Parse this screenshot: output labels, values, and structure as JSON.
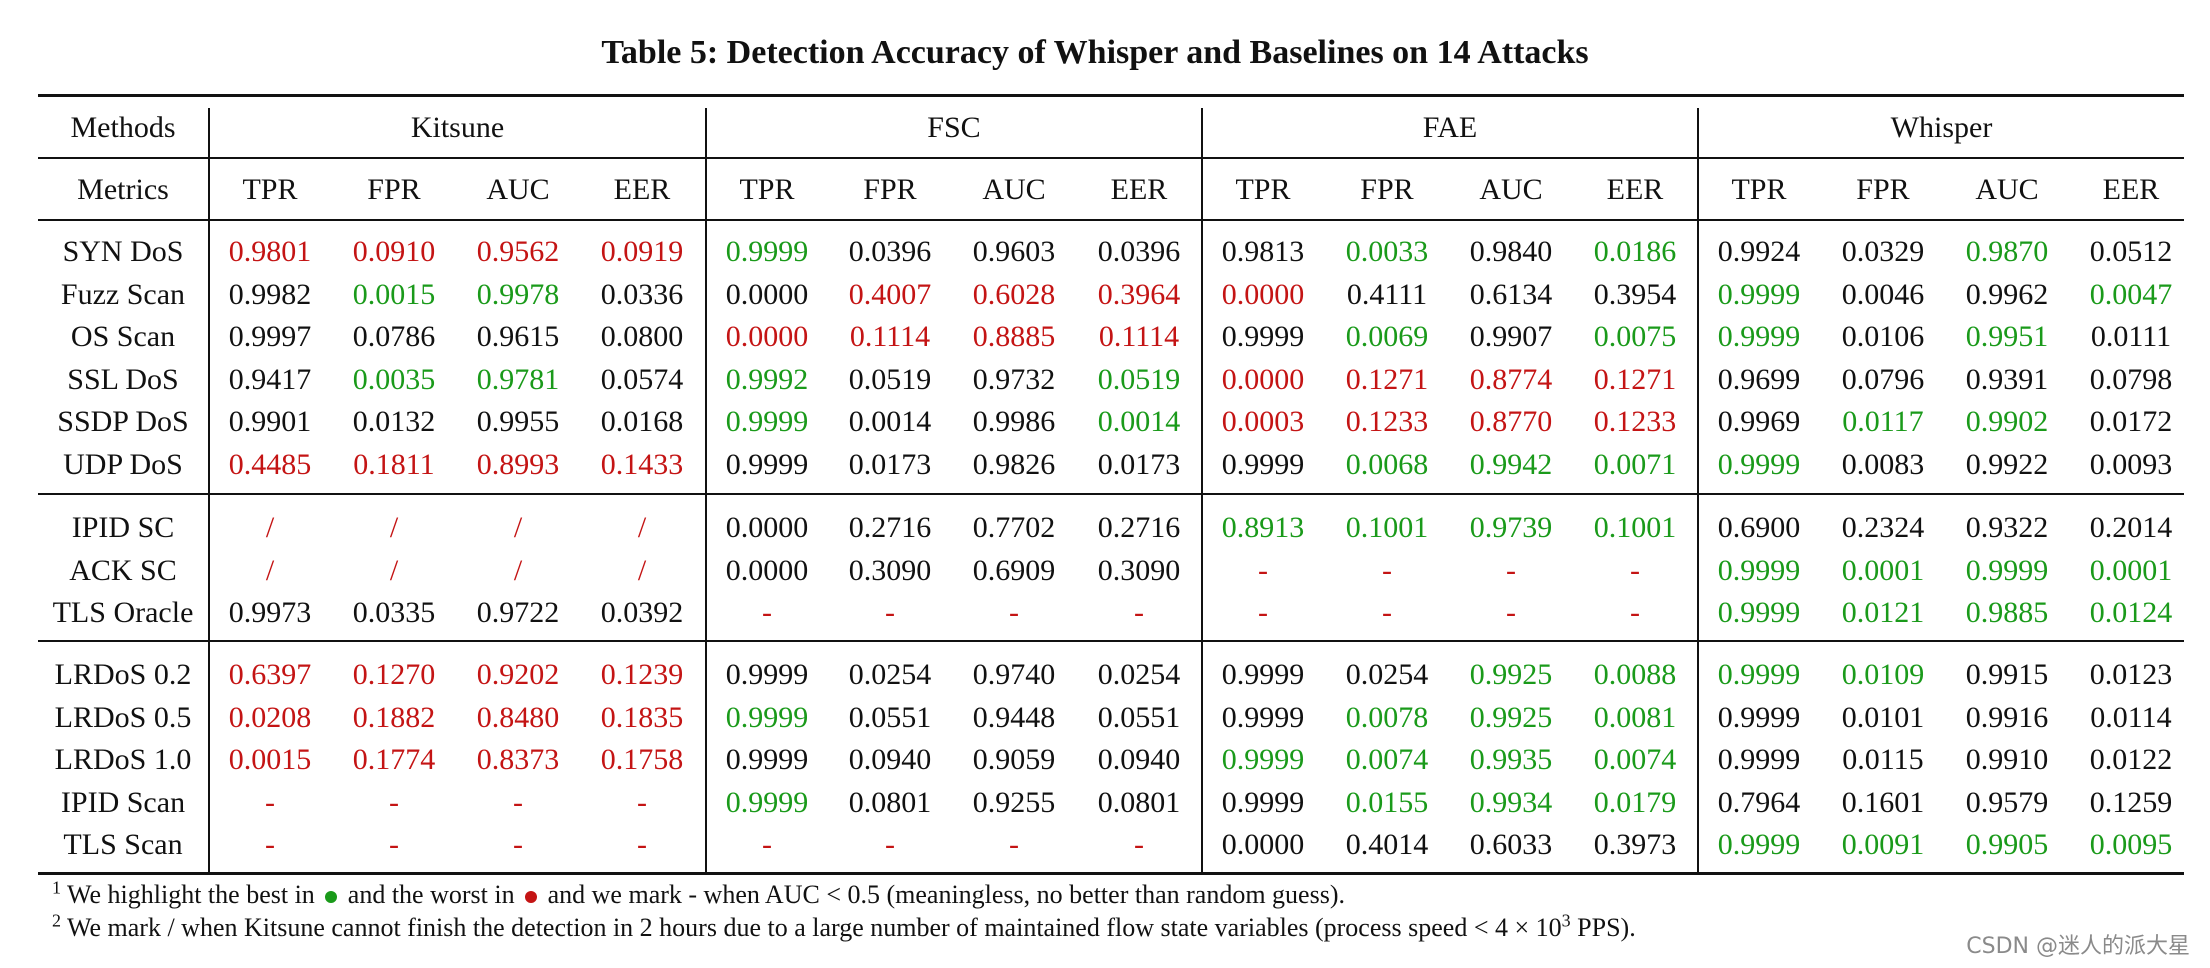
{
  "title": "Table 5: Detection Accuracy of Whisper and Baselines on 14 Attacks",
  "colors": {
    "best": "#1a9a1a",
    "worst": "#c41414",
    "normal": "#111111"
  },
  "header": {
    "methods_label": "Methods",
    "metrics_label": "Metrics",
    "methods": [
      "Kitsune",
      "FSC",
      "FAE",
      "Whisper"
    ],
    "metrics": [
      "TPR",
      "FPR",
      "AUC",
      "EER"
    ]
  },
  "groups": [
    {
      "rows": [
        {
          "label": "SYN DoS",
          "cells": [
            [
              "0.9801",
              "r"
            ],
            [
              "0.0910",
              "r"
            ],
            [
              "0.9562",
              "r"
            ],
            [
              "0.0919",
              "r"
            ],
            [
              "0.9999",
              "g"
            ],
            [
              "0.0396",
              "n"
            ],
            [
              "0.9603",
              "n"
            ],
            [
              "0.0396",
              "n"
            ],
            [
              "0.9813",
              "n"
            ],
            [
              "0.0033",
              "g"
            ],
            [
              "0.9840",
              "n"
            ],
            [
              "0.0186",
              "g"
            ],
            [
              "0.9924",
              "n"
            ],
            [
              "0.0329",
              "n"
            ],
            [
              "0.9870",
              "g"
            ],
            [
              "0.0512",
              "n"
            ]
          ]
        },
        {
          "label": "Fuzz Scan",
          "cells": [
            [
              "0.9982",
              "n"
            ],
            [
              "0.0015",
              "g"
            ],
            [
              "0.9978",
              "g"
            ],
            [
              "0.0336",
              "n"
            ],
            [
              "0.0000",
              "n"
            ],
            [
              "0.4007",
              "r"
            ],
            [
              "0.6028",
              "r"
            ],
            [
              "0.3964",
              "r"
            ],
            [
              "0.0000",
              "r"
            ],
            [
              "0.4111",
              "n"
            ],
            [
              "0.6134",
              "n"
            ],
            [
              "0.3954",
              "n"
            ],
            [
              "0.9999",
              "g"
            ],
            [
              "0.0046",
              "n"
            ],
            [
              "0.9962",
              "n"
            ],
            [
              "0.0047",
              "g"
            ]
          ]
        },
        {
          "label": "OS Scan",
          "cells": [
            [
              "0.9997",
              "n"
            ],
            [
              "0.0786",
              "n"
            ],
            [
              "0.9615",
              "n"
            ],
            [
              "0.0800",
              "n"
            ],
            [
              "0.0000",
              "r"
            ],
            [
              "0.1114",
              "r"
            ],
            [
              "0.8885",
              "r"
            ],
            [
              "0.1114",
              "r"
            ],
            [
              "0.9999",
              "n"
            ],
            [
              "0.0069",
              "g"
            ],
            [
              "0.9907",
              "n"
            ],
            [
              "0.0075",
              "g"
            ],
            [
              "0.9999",
              "g"
            ],
            [
              "0.0106",
              "n"
            ],
            [
              "0.9951",
              "g"
            ],
            [
              "0.0111",
              "n"
            ]
          ]
        },
        {
          "label": "SSL DoS",
          "cells": [
            [
              "0.9417",
              "n"
            ],
            [
              "0.0035",
              "g"
            ],
            [
              "0.9781",
              "g"
            ],
            [
              "0.0574",
              "n"
            ],
            [
              "0.9992",
              "g"
            ],
            [
              "0.0519",
              "n"
            ],
            [
              "0.9732",
              "n"
            ],
            [
              "0.0519",
              "g"
            ],
            [
              "0.0000",
              "r"
            ],
            [
              "0.1271",
              "r"
            ],
            [
              "0.8774",
              "r"
            ],
            [
              "0.1271",
              "r"
            ],
            [
              "0.9699",
              "n"
            ],
            [
              "0.0796",
              "n"
            ],
            [
              "0.9391",
              "n"
            ],
            [
              "0.0798",
              "n"
            ]
          ]
        },
        {
          "label": "SSDP DoS",
          "cells": [
            [
              "0.9901",
              "n"
            ],
            [
              "0.0132",
              "n"
            ],
            [
              "0.9955",
              "n"
            ],
            [
              "0.0168",
              "n"
            ],
            [
              "0.9999",
              "g"
            ],
            [
              "0.0014",
              "n"
            ],
            [
              "0.9986",
              "n"
            ],
            [
              "0.0014",
              "g"
            ],
            [
              "0.0003",
              "r"
            ],
            [
              "0.1233",
              "r"
            ],
            [
              "0.8770",
              "r"
            ],
            [
              "0.1233",
              "r"
            ],
            [
              "0.9969",
              "n"
            ],
            [
              "0.0117",
              "g"
            ],
            [
              "0.9902",
              "g"
            ],
            [
              "0.0172",
              "n"
            ]
          ]
        },
        {
          "label": "UDP DoS",
          "cells": [
            [
              "0.4485",
              "r"
            ],
            [
              "0.1811",
              "r"
            ],
            [
              "0.8993",
              "r"
            ],
            [
              "0.1433",
              "r"
            ],
            [
              "0.9999",
              "n"
            ],
            [
              "0.0173",
              "n"
            ],
            [
              "0.9826",
              "n"
            ],
            [
              "0.0173",
              "n"
            ],
            [
              "0.9999",
              "n"
            ],
            [
              "0.0068",
              "g"
            ],
            [
              "0.9942",
              "g"
            ],
            [
              "0.0071",
              "g"
            ],
            [
              "0.9999",
              "g"
            ],
            [
              "0.0083",
              "n"
            ],
            [
              "0.9922",
              "n"
            ],
            [
              "0.0093",
              "n"
            ]
          ]
        }
      ]
    },
    {
      "rows": [
        {
          "label": "IPID SC",
          "cells": [
            [
              "/",
              "r"
            ],
            [
              "/",
              "r"
            ],
            [
              "/",
              "r"
            ],
            [
              "/",
              "r"
            ],
            [
              "0.0000",
              "n"
            ],
            [
              "0.2716",
              "n"
            ],
            [
              "0.7702",
              "n"
            ],
            [
              "0.2716",
              "n"
            ],
            [
              "0.8913",
              "g"
            ],
            [
              "0.1001",
              "g"
            ],
            [
              "0.9739",
              "g"
            ],
            [
              "0.1001",
              "g"
            ],
            [
              "0.6900",
              "n"
            ],
            [
              "0.2324",
              "n"
            ],
            [
              "0.9322",
              "n"
            ],
            [
              "0.2014",
              "n"
            ]
          ]
        },
        {
          "label": "ACK SC",
          "cells": [
            [
              "/",
              "r"
            ],
            [
              "/",
              "r"
            ],
            [
              "/",
              "r"
            ],
            [
              "/",
              "r"
            ],
            [
              "0.0000",
              "n"
            ],
            [
              "0.3090",
              "n"
            ],
            [
              "0.6909",
              "n"
            ],
            [
              "0.3090",
              "n"
            ],
            [
              "-",
              "r"
            ],
            [
              "-",
              "r"
            ],
            [
              "-",
              "r"
            ],
            [
              "-",
              "r"
            ],
            [
              "0.9999",
              "g"
            ],
            [
              "0.0001",
              "g"
            ],
            [
              "0.9999",
              "g"
            ],
            [
              "0.0001",
              "g"
            ]
          ]
        },
        {
          "label": "TLS Oracle",
          "cells": [
            [
              "0.9973",
              "n"
            ],
            [
              "0.0335",
              "n"
            ],
            [
              "0.9722",
              "n"
            ],
            [
              "0.0392",
              "n"
            ],
            [
              "-",
              "r"
            ],
            [
              "-",
              "r"
            ],
            [
              "-",
              "r"
            ],
            [
              "-",
              "r"
            ],
            [
              "-",
              "r"
            ],
            [
              "-",
              "r"
            ],
            [
              "-",
              "r"
            ],
            [
              "-",
              "r"
            ],
            [
              "0.9999",
              "g"
            ],
            [
              "0.0121",
              "g"
            ],
            [
              "0.9885",
              "g"
            ],
            [
              "0.0124",
              "g"
            ]
          ]
        }
      ]
    },
    {
      "rows": [
        {
          "label": "LRDoS 0.2",
          "cells": [
            [
              "0.6397",
              "r"
            ],
            [
              "0.1270",
              "r"
            ],
            [
              "0.9202",
              "r"
            ],
            [
              "0.1239",
              "r"
            ],
            [
              "0.9999",
              "n"
            ],
            [
              "0.0254",
              "n"
            ],
            [
              "0.9740",
              "n"
            ],
            [
              "0.0254",
              "n"
            ],
            [
              "0.9999",
              "n"
            ],
            [
              "0.0254",
              "n"
            ],
            [
              "0.9925",
              "g"
            ],
            [
              "0.0088",
              "g"
            ],
            [
              "0.9999",
              "g"
            ],
            [
              "0.0109",
              "g"
            ],
            [
              "0.9915",
              "n"
            ],
            [
              "0.0123",
              "n"
            ]
          ]
        },
        {
          "label": "LRDoS 0.5",
          "cells": [
            [
              "0.0208",
              "r"
            ],
            [
              "0.1882",
              "r"
            ],
            [
              "0.8480",
              "r"
            ],
            [
              "0.1835",
              "r"
            ],
            [
              "0.9999",
              "g"
            ],
            [
              "0.0551",
              "n"
            ],
            [
              "0.9448",
              "n"
            ],
            [
              "0.0551",
              "n"
            ],
            [
              "0.9999",
              "n"
            ],
            [
              "0.0078",
              "g"
            ],
            [
              "0.9925",
              "g"
            ],
            [
              "0.0081",
              "g"
            ],
            [
              "0.9999",
              "n"
            ],
            [
              "0.0101",
              "n"
            ],
            [
              "0.9916",
              "n"
            ],
            [
              "0.0114",
              "n"
            ]
          ]
        },
        {
          "label": "LRDoS 1.0",
          "cells": [
            [
              "0.0015",
              "r"
            ],
            [
              "0.1774",
              "r"
            ],
            [
              "0.8373",
              "r"
            ],
            [
              "0.1758",
              "r"
            ],
            [
              "0.9999",
              "n"
            ],
            [
              "0.0940",
              "n"
            ],
            [
              "0.9059",
              "n"
            ],
            [
              "0.0940",
              "n"
            ],
            [
              "0.9999",
              "g"
            ],
            [
              "0.0074",
              "g"
            ],
            [
              "0.9935",
              "g"
            ],
            [
              "0.0074",
              "g"
            ],
            [
              "0.9999",
              "n"
            ],
            [
              "0.0115",
              "n"
            ],
            [
              "0.9910",
              "n"
            ],
            [
              "0.0122",
              "n"
            ]
          ]
        },
        {
          "label": "IPID Scan",
          "cells": [
            [
              "-",
              "r"
            ],
            [
              "-",
              "r"
            ],
            [
              "-",
              "r"
            ],
            [
              "-",
              "r"
            ],
            [
              "0.9999",
              "g"
            ],
            [
              "0.0801",
              "n"
            ],
            [
              "0.9255",
              "n"
            ],
            [
              "0.0801",
              "n"
            ],
            [
              "0.9999",
              "n"
            ],
            [
              "0.0155",
              "g"
            ],
            [
              "0.9934",
              "g"
            ],
            [
              "0.0179",
              "g"
            ],
            [
              "0.7964",
              "n"
            ],
            [
              "0.1601",
              "n"
            ],
            [
              "0.9579",
              "n"
            ],
            [
              "0.1259",
              "n"
            ]
          ]
        },
        {
          "label": "TLS Scan",
          "cells": [
            [
              "-",
              "r"
            ],
            [
              "-",
              "r"
            ],
            [
              "-",
              "r"
            ],
            [
              "-",
              "r"
            ],
            [
              "-",
              "r"
            ],
            [
              "-",
              "r"
            ],
            [
              "-",
              "r"
            ],
            [
              "-",
              "r"
            ],
            [
              "0.0000",
              "n"
            ],
            [
              "0.4014",
              "n"
            ],
            [
              "0.6033",
              "n"
            ],
            [
              "0.3973",
              "n"
            ],
            [
              "0.9999",
              "g"
            ],
            [
              "0.0091",
              "g"
            ],
            [
              "0.9905",
              "g"
            ],
            [
              "0.0095",
              "g"
            ]
          ]
        }
      ]
    }
  ],
  "footnotes": {
    "f1_num": "1",
    "f1_a": "We highlight the best in",
    "f1_b": "and the worst in",
    "f1_c": "and we mark - when AUC < 0.5 (meaningless, no better than random guess).",
    "f2_num": "2",
    "f2_a": "We mark / when Kitsune cannot finish the detection in 2 hours due to a large number of maintained flow state variables (process speed < 4 × 10",
    "f2_exp": "3",
    "f2_b": " PPS)."
  },
  "watermark": "CSDN @迷人的派大星"
}
